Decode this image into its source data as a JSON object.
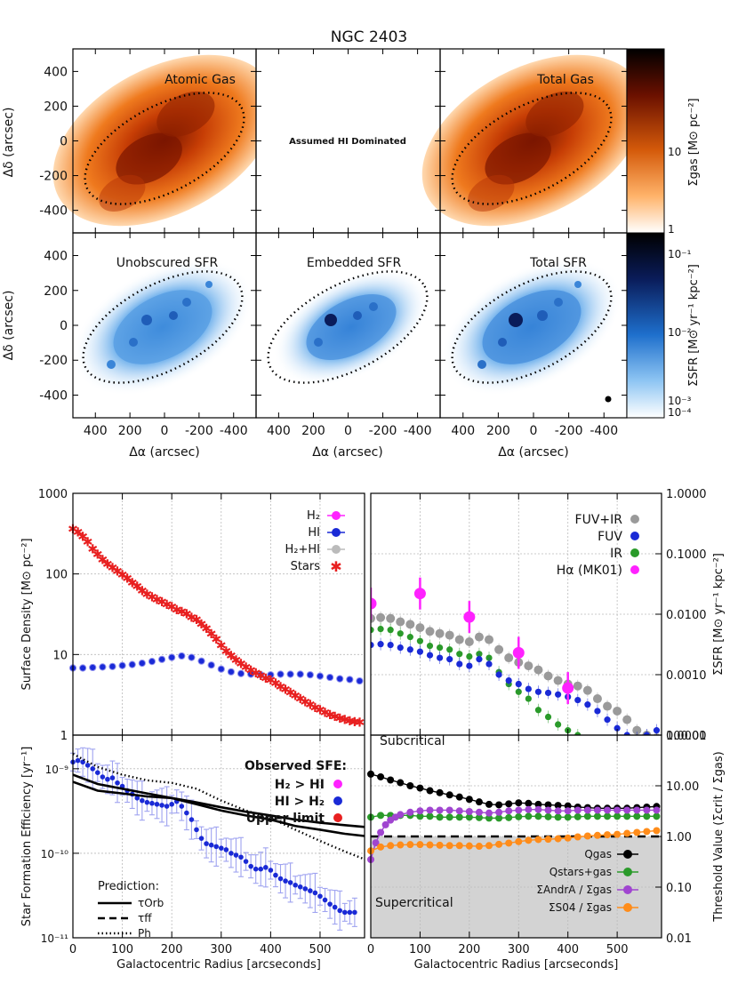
{
  "figure_title": "NGC 2403",
  "colors": {
    "gas_dark": "#8a1a00",
    "gas_mid": "#e06a10",
    "gas_light": "#ffb36a",
    "sfr_dark": "#0a1c5a",
    "sfr_mid": "#3d8fe0",
    "sfr_light": "#c7e2fb",
    "h2": "#ff22ff",
    "hi": "#1a2ad6",
    "h2hi": "#bbbbbb",
    "stars": "#e82020",
    "fuvir": "#9a9a9a",
    "fuv": "#1a2ad6",
    "ir": "#2a9a2a",
    "ha": "#ff22ff",
    "q_gas": "#000000",
    "q_stars_gas": "#2a9a2a",
    "ratio_ab": "#a045d0",
    "ratio_s04": "#ff8c1a",
    "supercritical_fill": "#d3d3d3"
  },
  "maps": {
    "axis_ticks": [
      "400",
      "200",
      "0",
      "-200",
      "-400"
    ],
    "x_label": "Δα (arcsec)",
    "y_label": "Δδ (arcsec)",
    "row1_panels": [
      "Atomic Gas",
      "Assumed HI Dominated",
      "Total Gas"
    ],
    "row2_panels": [
      "Unobscured SFR",
      "Embedded SFR",
      "Total SFR"
    ],
    "gas_colorbar": {
      "label": "Σgas [M⊙ pc⁻²]",
      "ticks": [
        "10",
        "1"
      ]
    },
    "sfr_colorbar": {
      "label": "ΣSFR [M⊙ yr⁻¹ kpc⁻²]",
      "ticks": [
        "10⁻¹",
        "10⁻²",
        "10⁻³",
        "10⁻⁴"
      ]
    }
  },
  "chart_data": [
    {
      "id": "surface_density",
      "type": "scatter",
      "xlabel": "",
      "ylabel": "Surface Density [M⊙ pc⁻²]",
      "xlim": [
        0,
        590
      ],
      "ylim": [
        1,
        1000
      ],
      "yscale": "log",
      "x_ticks": [
        "0",
        "100",
        "200",
        "300",
        "400",
        "500"
      ],
      "y_ticks": [
        "1",
        "10",
        "100",
        "1000"
      ],
      "legend": [
        "H₂",
        "HI",
        "H₂+HI",
        "Stars"
      ],
      "series": [
        {
          "name": "Stars",
          "x": [
            0,
            10,
            20,
            30,
            40,
            50,
            60,
            70,
            80,
            90,
            100,
            110,
            120,
            130,
            140,
            150,
            160,
            170,
            180,
            190,
            200,
            210,
            220,
            230,
            240,
            250,
            260,
            270,
            280,
            290,
            300,
            310,
            320,
            330,
            340,
            350,
            360,
            370,
            380,
            390,
            400,
            410,
            420,
            430,
            440,
            450,
            460,
            470,
            480,
            490,
            500,
            510,
            520,
            530,
            540,
            550,
            560,
            570,
            580
          ],
          "y": [
            360,
            330,
            290,
            250,
            205,
            175,
            150,
            132,
            120,
            108,
            98,
            88,
            78,
            70,
            62,
            56,
            52,
            48,
            45,
            42,
            39,
            36,
            34,
            32,
            29,
            27,
            24,
            21,
            18,
            15.5,
            13,
            11,
            9.7,
            8.6,
            7.7,
            7.0,
            6.4,
            5.9,
            5.5,
            5.1,
            4.8,
            4.4,
            4.0,
            3.7,
            3.4,
            3.1,
            2.85,
            2.6,
            2.4,
            2.2,
            2.05,
            1.9,
            1.8,
            1.7,
            1.62,
            1.55,
            1.5,
            1.47,
            1.45
          ]
        },
        {
          "name": "HI",
          "x": [
            0,
            20,
            40,
            60,
            80,
            100,
            120,
            140,
            160,
            180,
            200,
            220,
            240,
            260,
            280,
            300,
            320,
            340,
            360,
            380,
            400,
            420,
            440,
            460,
            480,
            500,
            520,
            540,
            560,
            580
          ],
          "y": [
            6.8,
            6.8,
            6.9,
            7.0,
            7.1,
            7.3,
            7.5,
            7.8,
            8.2,
            8.7,
            9.2,
            9.6,
            9.2,
            8.3,
            7.4,
            6.6,
            6.1,
            5.8,
            5.7,
            5.6,
            5.6,
            5.7,
            5.7,
            5.7,
            5.6,
            5.4,
            5.2,
            5.0,
            4.9,
            4.7
          ]
        }
      ]
    },
    {
      "id": "sfr_density",
      "type": "scatter",
      "xlabel": "",
      "ylabel": "ΣSFR [M⊙ yr⁻¹ kpc⁻²]",
      "xlim": [
        0,
        590
      ],
      "ylim": [
        0.0001,
        1.0
      ],
      "yscale": "log",
      "x_ticks": [
        "0",
        "100",
        "200",
        "300",
        "400",
        "500"
      ],
      "y_ticks": [
        "0.0001",
        "0.0010",
        "0.0100",
        "0.1000",
        "1.0000"
      ],
      "legend": [
        "FUV+IR",
        "FUV",
        "IR",
        "Hα (MK01)"
      ],
      "series": [
        {
          "name": "FUV+IR",
          "x": [
            0,
            20,
            40,
            60,
            80,
            100,
            120,
            140,
            160,
            180,
            200,
            220,
            240,
            260,
            280,
            300,
            320,
            340,
            360,
            380,
            400,
            420,
            440,
            460,
            480,
            500,
            520,
            540,
            560,
            580
          ],
          "y": [
            0.0085,
            0.0088,
            0.0085,
            0.0075,
            0.0068,
            0.006,
            0.0052,
            0.0048,
            0.0045,
            0.0038,
            0.0035,
            0.0042,
            0.0038,
            0.0026,
            0.0019,
            0.0016,
            0.0014,
            0.0012,
            0.00095,
            0.0008,
            0.0007,
            0.00065,
            0.00055,
            0.0004,
            0.0003,
            0.00025,
            0.00018,
            0.00012,
            0.0001,
            9e-05
          ]
        },
        {
          "name": "FUV",
          "x": [
            0,
            20,
            40,
            60,
            80,
            100,
            120,
            140,
            160,
            180,
            200,
            220,
            240,
            260,
            280,
            300,
            320,
            340,
            360,
            380,
            400,
            420,
            440,
            460,
            480,
            500,
            520,
            540,
            560,
            580
          ],
          "y": [
            0.0031,
            0.0032,
            0.0031,
            0.0028,
            0.0026,
            0.0024,
            0.0021,
            0.0019,
            0.0018,
            0.0015,
            0.0014,
            0.0018,
            0.0015,
            0.001,
            0.0008,
            0.0007,
            0.00058,
            0.00052,
            0.0005,
            0.00047,
            0.00043,
            0.00038,
            0.00032,
            0.00025,
            0.00018,
            0.00013,
            0.0001,
            9e-05,
            0.0001,
            0.00012
          ]
        },
        {
          "name": "IR",
          "x": [
            0,
            20,
            40,
            60,
            80,
            100,
            120,
            140,
            160,
            180,
            200,
            220,
            240,
            260,
            280,
            300,
            320,
            340,
            360,
            380,
            400,
            420
          ],
          "y": [
            0.0055,
            0.0057,
            0.0055,
            0.0048,
            0.0042,
            0.0036,
            0.003,
            0.0028,
            0.0026,
            0.0022,
            0.002,
            0.0022,
            0.0019,
            0.0011,
            0.0007,
            0.00052,
            0.0004,
            0.00026,
            0.0002,
            0.00015,
            0.00012,
            0.0001
          ]
        },
        {
          "name": "Hα (MK01)",
          "x": [
            0,
            100,
            200,
            300,
            400
          ],
          "y": [
            0.015,
            0.022,
            0.009,
            0.0023,
            0.0006
          ]
        }
      ]
    },
    {
      "id": "sfe",
      "type": "scatter",
      "xlabel": "Galactocentric Radius [arcseconds]",
      "ylabel": "Star Formation Efficiency [yr⁻¹]",
      "xlim": [
        0,
        590
      ],
      "ylim": [
        1e-11,
        2.5e-09
      ],
      "yscale": "log",
      "x_ticks": [
        "0",
        "100",
        "200",
        "300",
        "400",
        "500"
      ],
      "y_ticks": [
        "10⁻¹¹",
        "10⁻¹⁰",
        "10⁻⁹"
      ],
      "legend_title": "Observed SFE:",
      "legend": [
        "H₂ > HI",
        "HI > H₂",
        "Upper limit"
      ],
      "prediction_title": "Prediction:",
      "prediction_legend": [
        "τOrb",
        "τff",
        "Ph"
      ],
      "series": [
        {
          "name": "HI > H₂",
          "x": [
            0,
            10,
            20,
            30,
            40,
            50,
            60,
            70,
            80,
            90,
            100,
            110,
            120,
            130,
            140,
            150,
            160,
            170,
            180,
            190,
            200,
            210,
            220,
            230,
            240,
            250,
            260,
            270,
            280,
            290,
            300,
            310,
            320,
            330,
            340,
            350,
            360,
            370,
            380,
            390,
            400,
            410,
            420,
            430,
            440,
            450,
            460,
            470,
            480,
            490,
            500,
            510,
            520,
            530,
            540,
            550,
            560,
            570
          ],
          "y": [
            1.2e-09,
            1.25e-09,
            1.2e-09,
            1.1e-09,
            1e-09,
            9e-10,
            8e-10,
            7.5e-10,
            7.8e-10,
            6.8e-10,
            6.2e-10,
            5.5e-10,
            5e-10,
            4.5e-10,
            4.2e-10,
            4e-10,
            3.9e-10,
            3.8e-10,
            3.7e-10,
            3.6e-10,
            3.8e-10,
            4.1e-10,
            3.6e-10,
            3e-10,
            2.5e-10,
            1.9e-10,
            1.5e-10,
            1.3e-10,
            1.25e-10,
            1.2e-10,
            1.15e-10,
            1.1e-10,
            1e-10,
            9.5e-11,
            9e-11,
            8e-11,
            7e-11,
            6.5e-11,
            6.5e-11,
            6.8e-11,
            6.3e-11,
            5.5e-11,
            5e-11,
            4.7e-11,
            4.5e-11,
            4.2e-11,
            4e-11,
            3.8e-11,
            3.6e-11,
            3.4e-11,
            3.1e-11,
            2.8e-11,
            2.5e-11,
            2.3e-11,
            2.1e-11,
            2e-11,
            2e-11,
            2e-11
          ]
        },
        {
          "name": "τOrb",
          "x": [
            0,
            50,
            100,
            150,
            200,
            250,
            300,
            350,
            400,
            450,
            500,
            550,
            590
          ],
          "y": [
            8.5e-10,
            6.6e-10,
            5.8e-10,
            5.1e-10,
            4.5e-10,
            4e-10,
            3.5e-10,
            3.1e-10,
            2.8e-10,
            2.5e-10,
            2.3e-10,
            2.15e-10,
            2.05e-10
          ]
        },
        {
          "name": "τff",
          "x": [
            0,
            50,
            100,
            150,
            200,
            250,
            300,
            350,
            400,
            450,
            500,
            550,
            590
          ],
          "y": [
            7e-10,
            5.5e-10,
            5.1e-10,
            4.7e-10,
            4.5e-10,
            3.8e-10,
            3.2e-10,
            2.8e-10,
            2.5e-10,
            2.1e-10,
            1.9e-10,
            1.7e-10,
            1.6e-10
          ]
        },
        {
          "name": "Ph",
          "x": [
            0,
            50,
            100,
            150,
            200,
            250,
            300,
            350,
            400,
            450,
            500,
            550,
            590
          ],
          "y": [
            1.5e-09,
            1.05e-09,
            8.5e-10,
            7.3e-10,
            6.8e-10,
            5.8e-10,
            4.2e-10,
            3.2e-10,
            2.6e-10,
            1.9e-10,
            1.4e-10,
            1.05e-10,
            8.5e-11
          ]
        }
      ]
    },
    {
      "id": "threshold",
      "type": "scatter",
      "xlabel": "Galactocentric Radius [arcseconds]",
      "ylabel": "Threshold Value (Σcrit / Σgas)",
      "xlim": [
        0,
        590
      ],
      "ylim": [
        0.01,
        100
      ],
      "yscale": "log",
      "x_ticks": [
        "0",
        "100",
        "200",
        "300",
        "400",
        "500"
      ],
      "y_ticks": [
        "0.01",
        "0.10",
        "1.00",
        "10.00",
        "100.00"
      ],
      "annotations": [
        "Subcritical",
        "Supercritical"
      ],
      "legend": [
        "Qgas",
        "Qstars+gas",
        "ΣAndrA / Σgas",
        "ΣS04 / Σgas"
      ],
      "series": [
        {
          "name": "Qgas",
          "x": [
            0,
            20,
            40,
            60,
            80,
            100,
            120,
            140,
            160,
            180,
            200,
            220,
            240,
            260,
            280,
            300,
            320,
            340,
            360,
            380,
            400,
            420,
            440,
            460,
            480,
            500,
            520,
            540,
            560,
            580
          ],
          "y": [
            17,
            15,
            13,
            11.5,
            10,
            9,
            8,
            7.3,
            6.6,
            6,
            5.4,
            4.8,
            4.3,
            4.2,
            4.4,
            4.6,
            4.5,
            4.3,
            4.2,
            4.1,
            4.0,
            3.8,
            3.7,
            3.6,
            3.6,
            3.6,
            3.6,
            3.7,
            3.8,
            3.9
          ]
        },
        {
          "name": "Qstars+gas",
          "x": [
            0,
            20,
            40,
            60,
            80,
            100,
            120,
            140,
            160,
            180,
            200,
            220,
            240,
            260,
            280,
            300,
            320,
            340,
            360,
            380,
            400,
            420,
            440,
            460,
            480,
            500,
            520,
            540,
            560,
            580
          ],
          "y": [
            2.4,
            2.6,
            2.6,
            2.6,
            2.6,
            2.5,
            2.5,
            2.4,
            2.4,
            2.4,
            2.4,
            2.35,
            2.3,
            2.3,
            2.35,
            2.45,
            2.5,
            2.5,
            2.45,
            2.4,
            2.4,
            2.45,
            2.5,
            2.5,
            2.5,
            2.5,
            2.5,
            2.5,
            2.5,
            2.5
          ]
        },
        {
          "name": "ΣAndrA / Σgas",
          "x": [
            0,
            10,
            20,
            30,
            40,
            50,
            60,
            80,
            100,
            120,
            140,
            160,
            180,
            200,
            220,
            240,
            260,
            280,
            300,
            320,
            340,
            360,
            380,
            400,
            420,
            440,
            460,
            480,
            500,
            520,
            540,
            560,
            580
          ],
          "y": [
            0.35,
            0.75,
            1.2,
            1.7,
            2.1,
            2.4,
            2.7,
            3.0,
            3.2,
            3.3,
            3.3,
            3.3,
            3.2,
            3.1,
            3.0,
            2.9,
            3.0,
            3.2,
            3.3,
            3.4,
            3.4,
            3.3,
            3.2,
            3.2,
            3.3,
            3.3,
            3.3,
            3.3,
            3.3,
            3.3,
            3.3,
            3.3,
            3.3
          ]
        },
        {
          "name": "ΣS04 / Σgas",
          "x": [
            0,
            20,
            40,
            60,
            80,
            100,
            120,
            140,
            160,
            180,
            200,
            220,
            240,
            260,
            280,
            300,
            320,
            340,
            360,
            380,
            400,
            420,
            440,
            460,
            480,
            500,
            520,
            540,
            560,
            580
          ],
          "y": [
            0.52,
            0.62,
            0.66,
            0.68,
            0.69,
            0.69,
            0.68,
            0.67,
            0.66,
            0.66,
            0.65,
            0.64,
            0.66,
            0.7,
            0.74,
            0.79,
            0.84,
            0.87,
            0.88,
            0.9,
            0.93,
            0.98,
            1.02,
            1.05,
            1.08,
            1.1,
            1.15,
            1.2,
            1.25,
            1.3
          ]
        }
      ]
    }
  ]
}
